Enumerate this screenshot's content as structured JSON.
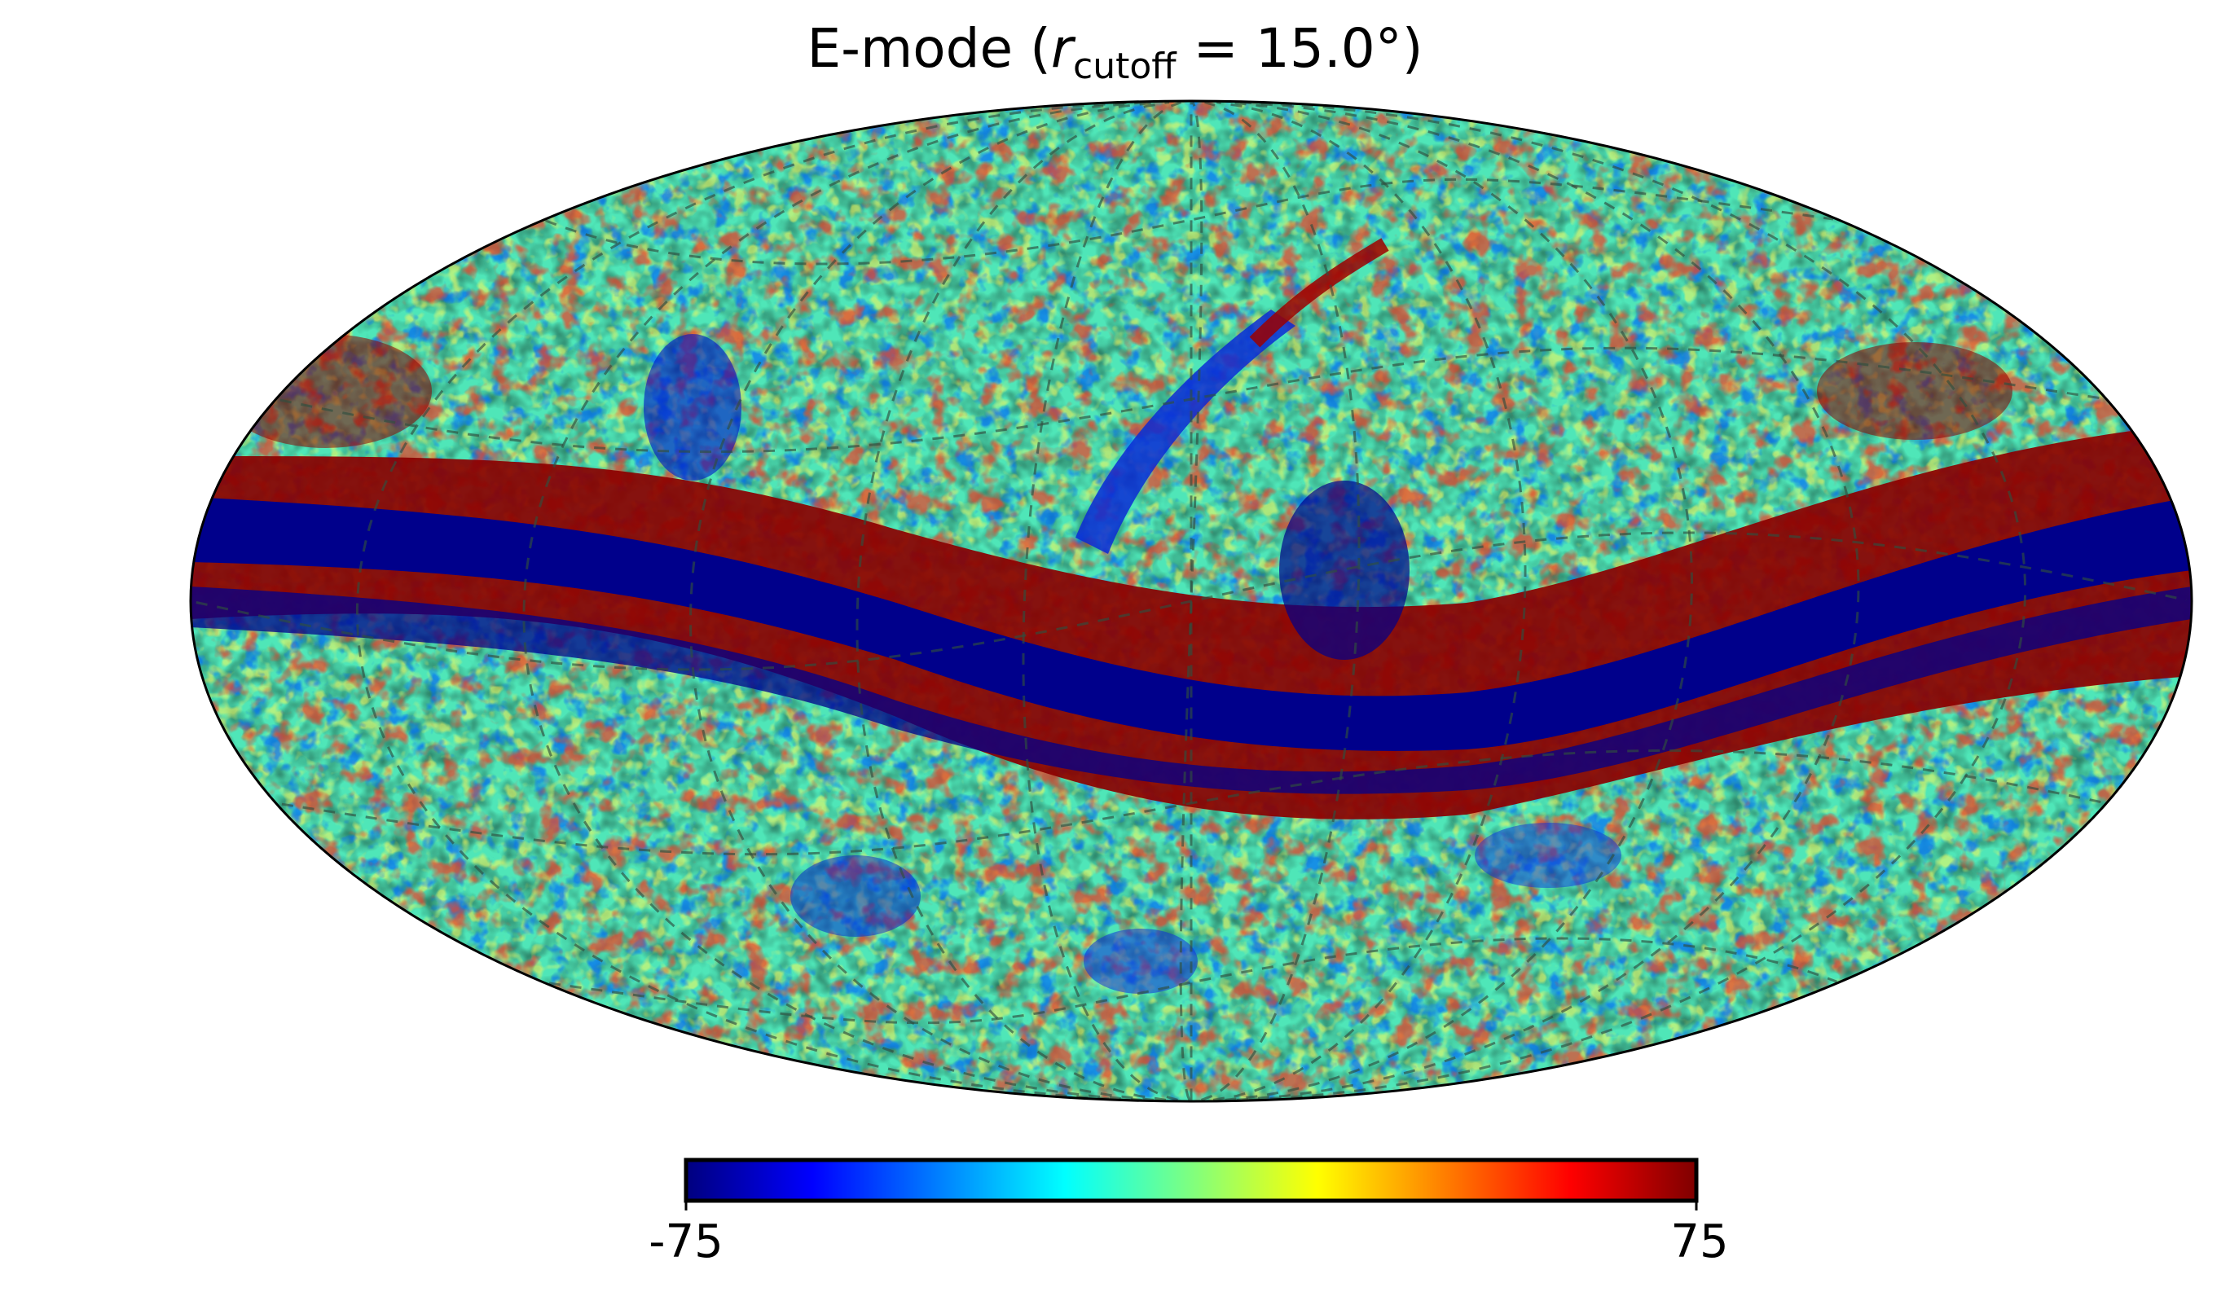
{
  "title": {
    "prefix": "E-mode (",
    "variable": "r",
    "subscript": "cutoff",
    "suffix": " = 15.0°)"
  },
  "map": {
    "projection": "mollweide",
    "colormap": "jet",
    "graticule": "dashed",
    "features": [
      "galactic-plane-band",
      "high-latitude-noise"
    ]
  },
  "colorbar": {
    "min_label": "-75",
    "max_label": "75",
    "min": -75,
    "max": 75,
    "colors": [
      "#00007f",
      "#0000ff",
      "#007fff",
      "#00ffff",
      "#7fff7f",
      "#ffff00",
      "#ff7f00",
      "#ff0000",
      "#7f0000"
    ]
  }
}
